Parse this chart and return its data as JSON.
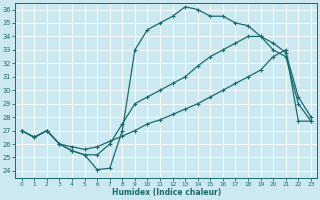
{
  "xlabel": "Humidex (Indice chaleur)",
  "bg_color": "#cce8f0",
  "grid_color": "#b0d8e8",
  "line_color": "#1a6b6b",
  "xlim": [
    -0.5,
    23.5
  ],
  "ylim": [
    23.5,
    36.5
  ],
  "xticks": [
    0,
    1,
    2,
    3,
    4,
    5,
    6,
    7,
    8,
    9,
    10,
    11,
    12,
    13,
    14,
    15,
    16,
    17,
    18,
    19,
    20,
    21,
    22,
    23
  ],
  "yticks": [
    24,
    25,
    26,
    27,
    28,
    29,
    30,
    31,
    32,
    33,
    34,
    35,
    36
  ],
  "curve1_x": [
    0,
    1,
    2,
    3,
    4,
    5,
    6,
    7,
    8,
    9,
    10,
    11,
    12,
    13,
    14,
    15,
    16,
    17,
    18,
    19,
    20,
    21,
    22,
    23
  ],
  "curve1_y": [
    27.0,
    26.5,
    27.0,
    26.0,
    25.5,
    25.2,
    24.1,
    24.2,
    27.0,
    33.0,
    34.5,
    35.0,
    35.5,
    36.2,
    36.0,
    35.5,
    35.5,
    35.0,
    34.8,
    34.0,
    33.0,
    32.5,
    29.0,
    27.7
  ],
  "curve2_x": [
    0,
    1,
    2,
    3,
    4,
    5,
    6,
    7,
    8,
    9,
    10,
    11,
    12,
    13,
    14,
    15,
    16,
    17,
    18,
    19,
    20,
    21,
    22,
    23
  ],
  "curve2_y": [
    27.0,
    26.5,
    27.0,
    26.0,
    25.5,
    25.2,
    25.2,
    26.0,
    27.5,
    29.0,
    29.5,
    30.0,
    30.5,
    31.0,
    31.8,
    32.5,
    33.0,
    33.5,
    34.0,
    34.0,
    33.5,
    32.8,
    29.5,
    28.0
  ],
  "curve3_x": [
    0,
    1,
    2,
    3,
    4,
    5,
    6,
    7,
    8,
    9,
    10,
    11,
    12,
    13,
    14,
    15,
    16,
    17,
    18,
    19,
    20,
    21,
    22,
    23
  ],
  "curve3_y": [
    27.0,
    26.5,
    27.0,
    26.0,
    25.8,
    25.6,
    25.8,
    26.2,
    26.6,
    27.0,
    27.5,
    27.8,
    28.2,
    28.6,
    29.0,
    29.5,
    30.0,
    30.5,
    31.0,
    31.5,
    32.5,
    33.0,
    27.7,
    27.7
  ]
}
